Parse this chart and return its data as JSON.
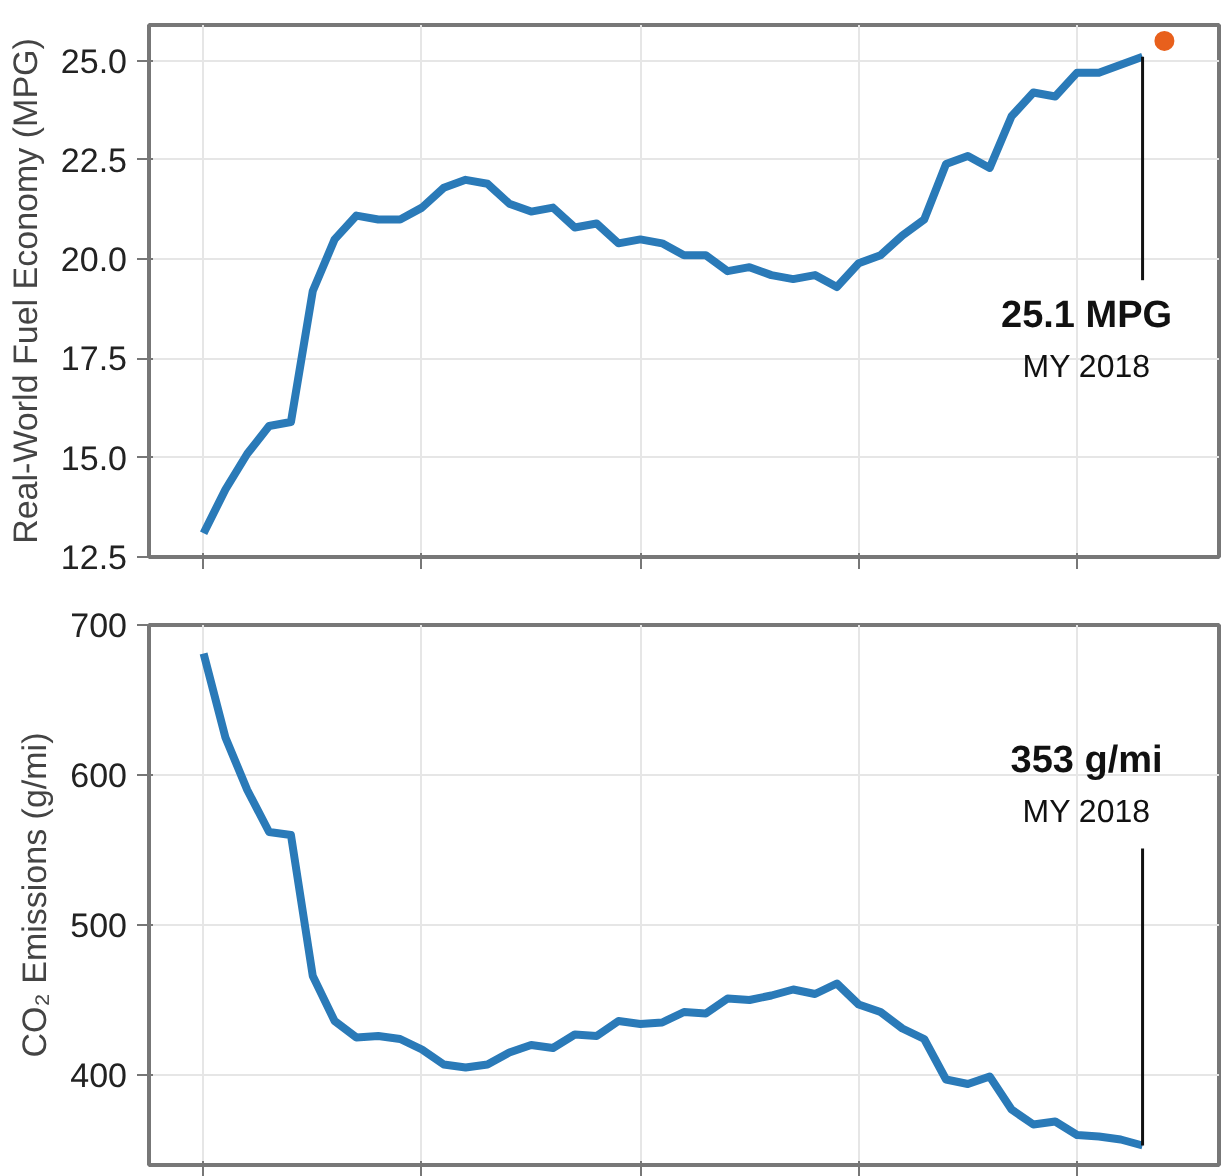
{
  "chart_data": [
    {
      "type": "line",
      "ylabel": "Real-World Fuel Economy (MPG)",
      "categories": [
        null,
        null,
        null,
        null,
        null,
        null,
        null,
        null,
        null,
        null,
        null,
        null,
        null,
        null,
        null,
        null,
        null,
        null,
        null,
        null,
        null,
        null,
        null,
        null,
        null,
        null,
        null,
        null,
        null,
        null,
        null,
        null,
        null,
        null,
        null,
        null,
        null,
        null,
        null,
        null,
        null,
        null,
        null,
        null,
        null
      ],
      "series": [
        {
          "color": "#2a7ab8",
          "values": [
            13.1,
            14.2,
            15.1,
            15.8,
            15.9,
            19.2,
            20.5,
            21.1,
            21.0,
            21.0,
            21.3,
            21.8,
            22.0,
            21.9,
            21.4,
            21.2,
            21.3,
            20.8,
            20.9,
            20.4,
            20.5,
            20.4,
            20.1,
            20.1,
            19.7,
            19.8,
            19.6,
            19.5,
            19.6,
            19.3,
            19.9,
            20.1,
            20.6,
            21.0,
            22.4,
            22.6,
            22.3,
            23.6,
            24.2,
            24.1,
            24.7,
            24.7,
            24.9,
            25.1,
            null
          ]
        },
        {
          "type": "scatter",
          "color": "#e8601c",
          "values": [
            null,
            null,
            null,
            null,
            null,
            null,
            null,
            null,
            null,
            null,
            null,
            null,
            null,
            null,
            null,
            null,
            null,
            null,
            null,
            null,
            null,
            null,
            null,
            null,
            null,
            null,
            null,
            null,
            null,
            null,
            null,
            null,
            null,
            null,
            null,
            null,
            null,
            null,
            null,
            null,
            null,
            null,
            null,
            null,
            25.5
          ]
        }
      ],
      "ylim": [
        12.5,
        25.9
      ],
      "yticks": [
        12.5,
        {
          "value": 15,
          "label": "15.0"
        },
        17.5,
        {
          "value": 20,
          "label": "20.0"
        },
        22.5,
        {
          "value": 25,
          "label": "25.0"
        }
      ],
      "annotations": [
        "25.1 MPG",
        "MY 2018"
      ],
      "grid": true,
      "tick_labels": "y"
    },
    {
      "type": "line",
      "ylabel": "CO₂ Emissions (g/mi)",
      "categories": [
        null,
        null,
        null,
        null,
        null,
        null,
        null,
        null,
        null,
        null,
        null,
        null,
        null,
        null,
        null,
        null,
        null,
        null,
        null,
        null,
        null,
        null,
        null,
        null,
        null,
        null,
        null,
        null,
        null,
        null,
        null,
        null,
        null,
        null,
        null,
        null,
        null,
        null,
        null,
        null,
        null,
        null,
        null,
        null
      ],
      "series": [
        {
          "color": "#2a7ab8",
          "values": [
            681,
            625,
            590,
            562,
            560,
            466,
            436,
            425,
            426,
            424,
            417,
            407,
            405,
            407,
            415,
            420,
            418,
            427,
            426,
            436,
            434,
            435,
            442,
            441,
            451,
            450,
            453,
            457,
            454,
            461,
            447,
            442,
            431,
            424,
            397,
            394,
            399,
            377,
            367,
            369,
            360,
            359,
            357,
            353
          ]
        }
      ],
      "ylim": [
        340,
        700
      ],
      "yticks": [
        400,
        500,
        600,
        700
      ],
      "annotations": [
        "353 g/mi",
        "MY 2018"
      ],
      "grid": true,
      "tick_labels": "y"
    }
  ]
}
